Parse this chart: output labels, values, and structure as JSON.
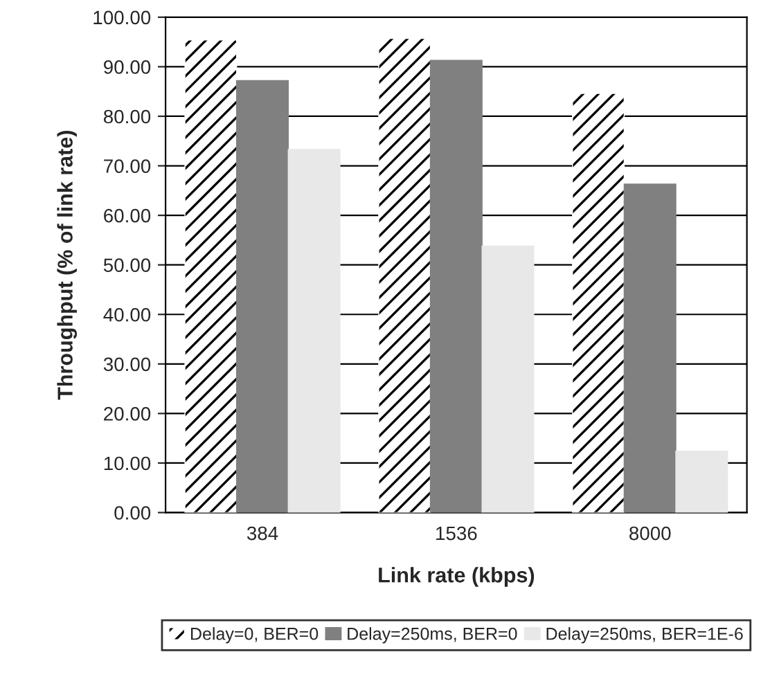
{
  "chart_data": {
    "type": "bar",
    "xlabel": "Link rate (kbps)",
    "ylabel": "Throughput (% of link rate)",
    "categories": [
      "384",
      "1536",
      "8000"
    ],
    "series": [
      {
        "name": "Delay=0, BER=0",
        "color": "#ffffff",
        "values": [
          95.4,
          95.7,
          84.6
        ]
      },
      {
        "name": "Delay=250ms, BER=0",
        "color": "#808080",
        "values": [
          87.2,
          91.3,
          66.3
        ]
      },
      {
        "name": "Delay=250ms, BER=1E-6",
        "color": "#e8e8e8",
        "values": [
          73.3,
          53.8,
          12.4
        ]
      }
    ],
    "ylim": [
      0,
      100
    ],
    "yticks": [
      {
        "value": 0,
        "label": "0.00"
      },
      {
        "value": 10,
        "label": "10.00"
      },
      {
        "value": 20,
        "label": "20.00"
      },
      {
        "value": 30,
        "label": "30.00"
      },
      {
        "value": 40,
        "label": "40.00"
      },
      {
        "value": 50,
        "label": "50.00"
      },
      {
        "value": 60,
        "label": "60.00"
      },
      {
        "value": 70,
        "label": "70.00"
      },
      {
        "value": 80,
        "label": "80.00"
      },
      {
        "value": 90,
        "label": "90.00"
      },
      {
        "value": 100,
        "label": "100.00"
      }
    ],
    "grid": "y",
    "legend": "bottom"
  }
}
